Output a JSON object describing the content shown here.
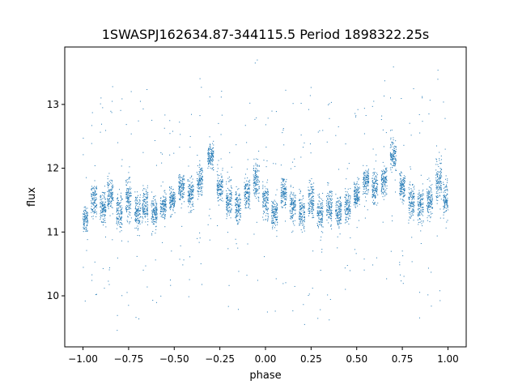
{
  "chart_data": {
    "type": "scatter",
    "title": "1SWASPJ162634.87-344115.5 Period 1898322.25s",
    "xlabel": "phase",
    "ylabel": "flux",
    "xlim": [
      -1.1,
      1.1
    ],
    "ylim": [
      9.2,
      13.9
    ],
    "xticks": [
      -1.0,
      -0.75,
      -0.5,
      -0.25,
      0.0,
      0.25,
      0.5,
      0.75,
      1.0
    ],
    "xtick_labels": [
      "−1.00",
      "−0.75",
      "−0.50",
      "−0.25",
      "0.00",
      "0.25",
      "0.50",
      "0.75",
      "1.00"
    ],
    "yticks": [
      10,
      11,
      12,
      13
    ],
    "ytick_labels": [
      "10",
      "11",
      "12",
      "13"
    ],
    "grid": false,
    "legend": "none",
    "marker_color": "#1f77b4",
    "series": [
      {
        "phase_range": [
          -1.0,
          1.0
        ],
        "mean_flux": 11.5,
        "flux_range": [
          9.4,
          13.7
        ],
        "clumps": [
          {
            "x": -0.99,
            "y": 11.2,
            "dy": 0.35
          },
          {
            "x": -0.94,
            "y": 11.5,
            "dy": 0.45
          },
          {
            "x": -0.89,
            "y": 11.4,
            "dy": 0.45
          },
          {
            "x": -0.85,
            "y": 11.6,
            "dy": 0.45
          },
          {
            "x": -0.8,
            "y": 11.3,
            "dy": 0.5
          },
          {
            "x": -0.75,
            "y": 11.5,
            "dy": 0.55
          },
          {
            "x": -0.7,
            "y": 11.3,
            "dy": 0.45
          },
          {
            "x": -0.66,
            "y": 11.4,
            "dy": 0.55
          },
          {
            "x": -0.61,
            "y": 11.3,
            "dy": 0.4
          },
          {
            "x": -0.56,
            "y": 11.4,
            "dy": 0.35
          },
          {
            "x": -0.51,
            "y": 11.5,
            "dy": 0.3
          },
          {
            "x": -0.46,
            "y": 11.7,
            "dy": 0.35
          },
          {
            "x": -0.41,
            "y": 11.6,
            "dy": 0.4
          },
          {
            "x": -0.36,
            "y": 11.8,
            "dy": 0.4
          },
          {
            "x": -0.3,
            "y": 12.2,
            "dy": 0.3
          },
          {
            "x": -0.25,
            "y": 11.7,
            "dy": 0.35
          },
          {
            "x": -0.2,
            "y": 11.5,
            "dy": 0.45
          },
          {
            "x": -0.15,
            "y": 11.4,
            "dy": 0.45
          },
          {
            "x": -0.1,
            "y": 11.6,
            "dy": 0.4
          },
          {
            "x": -0.05,
            "y": 11.8,
            "dy": 0.5
          },
          {
            "x": 0.0,
            "y": 11.5,
            "dy": 0.45
          },
          {
            "x": 0.05,
            "y": 11.3,
            "dy": 0.4
          },
          {
            "x": 0.1,
            "y": 11.6,
            "dy": 0.4
          },
          {
            "x": 0.15,
            "y": 11.4,
            "dy": 0.4
          },
          {
            "x": 0.2,
            "y": 11.3,
            "dy": 0.45
          },
          {
            "x": 0.25,
            "y": 11.5,
            "dy": 0.5
          },
          {
            "x": 0.3,
            "y": 11.3,
            "dy": 0.45
          },
          {
            "x": 0.35,
            "y": 11.4,
            "dy": 0.5
          },
          {
            "x": 0.4,
            "y": 11.3,
            "dy": 0.4
          },
          {
            "x": 0.45,
            "y": 11.4,
            "dy": 0.35
          },
          {
            "x": 0.5,
            "y": 11.6,
            "dy": 0.35
          },
          {
            "x": 0.55,
            "y": 11.8,
            "dy": 0.35
          },
          {
            "x": 0.6,
            "y": 11.7,
            "dy": 0.4
          },
          {
            "x": 0.65,
            "y": 11.8,
            "dy": 0.4
          },
          {
            "x": 0.7,
            "y": 12.2,
            "dy": 0.35
          },
          {
            "x": 0.75,
            "y": 11.7,
            "dy": 0.35
          },
          {
            "x": 0.8,
            "y": 11.5,
            "dy": 0.45
          },
          {
            "x": 0.85,
            "y": 11.4,
            "dy": 0.45
          },
          {
            "x": 0.9,
            "y": 11.5,
            "dy": 0.45
          },
          {
            "x": 0.95,
            "y": 11.8,
            "dy": 0.5
          },
          {
            "x": 0.99,
            "y": 11.5,
            "dy": 0.45
          }
        ]
      }
    ]
  }
}
